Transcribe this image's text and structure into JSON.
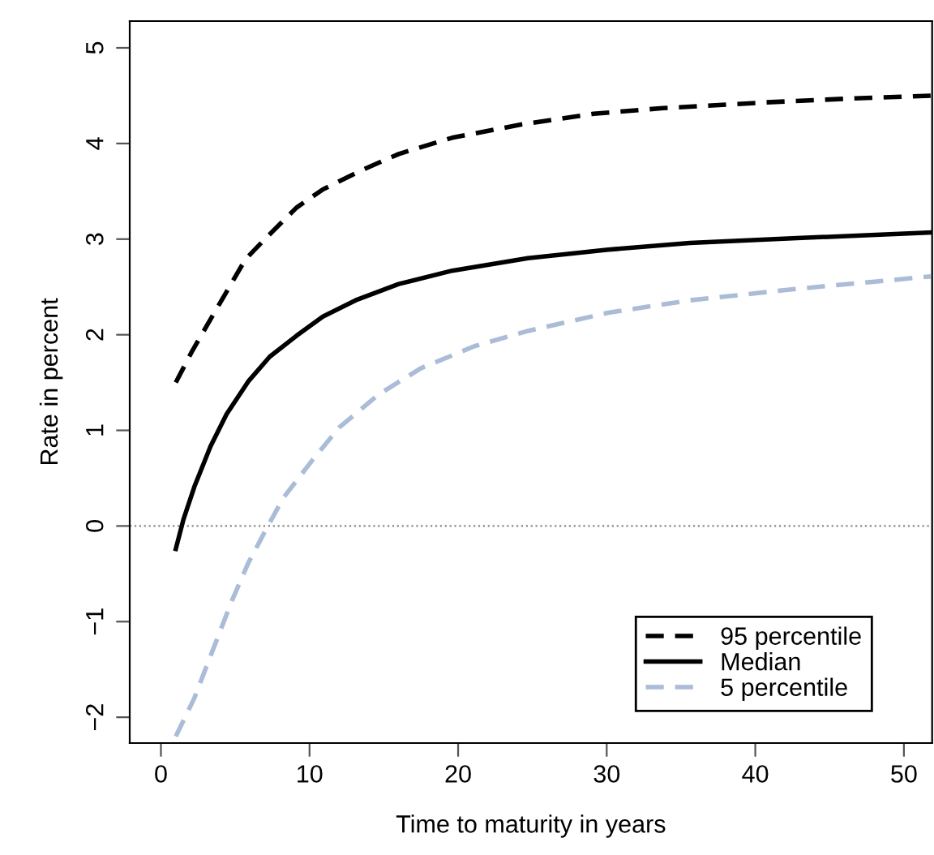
{
  "chart_data": {
    "type": "line",
    "xlabel": "Time to maturity in years",
    "ylabel": "Rate in percent",
    "xlim": [
      -2.1,
      51.9
    ],
    "ylim": [
      -2.27,
      5.28
    ],
    "xticks": [
      0,
      10,
      20,
      30,
      40,
      50
    ],
    "yticks": [
      {
        "value": -2,
        "label": "−2"
      },
      {
        "value": -1,
        "label": "−1"
      },
      0,
      1,
      2,
      3,
      4,
      5
    ],
    "grid": false,
    "legend": "bottom right",
    "marker": "none",
    "ref_lines": [
      {
        "axis": "y",
        "value": 0,
        "color": "#888888",
        "line_style": "dotted"
      }
    ],
    "series": [
      {
        "name": "95 percentile",
        "color": "#000000",
        "line_style": "dashed",
        "x": [
          1,
          2.07,
          3.33,
          4.42,
          5.69,
          7.25,
          9.13,
          10.9,
          13.5,
          16,
          19.6,
          24.3,
          29.1,
          33.8,
          40.7,
          46.4,
          51.8
        ],
        "values": [
          1.5,
          1.82,
          2.16,
          2.45,
          2.79,
          3.04,
          3.33,
          3.52,
          3.72,
          3.89,
          4.06,
          4.2,
          4.31,
          4.37,
          4.43,
          4.47,
          4.5
        ]
      },
      {
        "name": "Median",
        "color": "#000000",
        "line_style": "solid",
        "x": [
          1,
          1.52,
          2.25,
          3.33,
          4.42,
          5.87,
          7.32,
          9.13,
          10.9,
          13.1,
          16,
          19.6,
          24.7,
          30.1,
          35.6,
          42.8,
          51.8
        ],
        "values": [
          -0.24,
          0.07,
          0.41,
          0.83,
          1.17,
          1.51,
          1.77,
          1.99,
          2.19,
          2.36,
          2.53,
          2.67,
          2.8,
          2.89,
          2.96,
          3.01,
          3.07
        ]
      },
      {
        "name": "5 percentile",
        "color": "#a9bcd9",
        "line_style": "dashed",
        "x": [
          1,
          2.25,
          3.51,
          4.78,
          5.87,
          6.96,
          8.22,
          10.2,
          12,
          14.6,
          17.5,
          21.1,
          24.7,
          30.1,
          35.6,
          42.8,
          51.8
        ],
        "values": [
          -2.2,
          -1.8,
          -1.29,
          -0.78,
          -0.39,
          -0.07,
          0.29,
          0.69,
          1.03,
          1.37,
          1.65,
          1.88,
          2.04,
          2.23,
          2.36,
          2.48,
          2.61
        ]
      }
    ]
  }
}
